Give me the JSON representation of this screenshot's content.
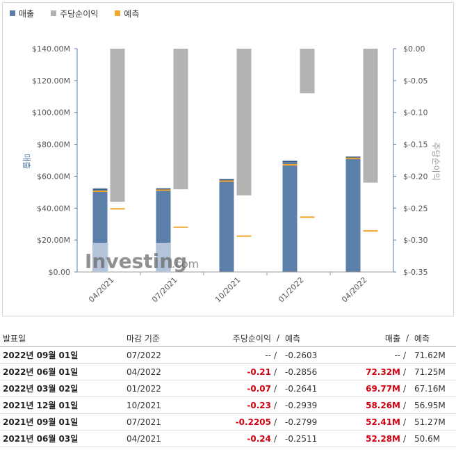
{
  "legend": [
    {
      "label": "매출",
      "color": "#5b7fa9"
    },
    {
      "label": "주당순이익",
      "color": "#b3b3b3"
    },
    {
      "label": "예측",
      "color": "#f0a830"
    }
  ],
  "chart_data": {
    "type": "bar",
    "categories": [
      "04/2021",
      "07/2021",
      "10/2021",
      "01/2022",
      "04/2022"
    ],
    "series": [
      {
        "name": "매출",
        "axis": "left",
        "values": [
          52.28,
          52.41,
          58.26,
          69.77,
          72.32
        ]
      },
      {
        "name": "매출 예측",
        "axis": "left",
        "values": [
          50.6,
          51.27,
          56.95,
          67.16,
          71.25
        ]
      },
      {
        "name": "주당순이익",
        "axis": "right",
        "values": [
          -0.24,
          -0.2205,
          -0.23,
          -0.07,
          -0.21
        ]
      },
      {
        "name": "주당순이익 예측",
        "axis": "right",
        "values": [
          -0.2511,
          -0.2799,
          -0.2939,
          -0.2641,
          -0.2856
        ]
      }
    ],
    "ylabel_left": "매출",
    "ylabel_right": "주당순이익",
    "ylim_left": [
      0,
      140
    ],
    "ylim_right": [
      -0.35,
      0
    ],
    "yticks_left": [
      "$0.00",
      "$20.00M",
      "$40.00M",
      "$60.00M",
      "$80.00M",
      "$100.00M",
      "$120.00M",
      "$140.00M"
    ],
    "yticks_right": [
      "$0.00",
      "$-0.05",
      "$-0.10",
      "$-0.15",
      "$-0.20",
      "$-0.25",
      "$-0.30",
      "$-0.35"
    ],
    "colors": {
      "revenue": "#5b7fa9",
      "eps": "#b3b3b3",
      "forecast": "#f0a830"
    },
    "watermark": "Investing.com"
  },
  "table": {
    "headers": {
      "date": "발표일",
      "period": "마감 기준",
      "eps": "주당순이익",
      "eps_sep": "/",
      "eps_fc": "예측",
      "rev": "매출",
      "rev_sep": "/",
      "rev_fc": "예측"
    },
    "rows": [
      {
        "date": "2022년 09월 01일",
        "period": "07/2022",
        "eps": "--",
        "eps_sep": "/",
        "eps_fc": "-0.2603",
        "rev": "--",
        "rev_sep": "/",
        "rev_fc": "71.62M"
      },
      {
        "date": "2022년 06월 01일",
        "period": "04/2022",
        "eps": "-0.21",
        "eps_sep": "/",
        "eps_fc": "-0.2856",
        "rev": "72.32M",
        "rev_sep": "/",
        "rev_fc": "71.25M"
      },
      {
        "date": "2022년 03월 02일",
        "period": "01/2022",
        "eps": "-0.07",
        "eps_sep": "/",
        "eps_fc": "-0.2641",
        "rev": "69.77M",
        "rev_sep": "/",
        "rev_fc": "67.16M"
      },
      {
        "date": "2021년 12월 01일",
        "period": "10/2021",
        "eps": "-0.23",
        "eps_sep": "/",
        "eps_fc": "-0.2939",
        "rev": "58.26M",
        "rev_sep": "/",
        "rev_fc": "56.95M"
      },
      {
        "date": "2021년 09월 01일",
        "period": "07/2021",
        "eps": "-0.2205",
        "eps_sep": "/",
        "eps_fc": "-0.2799",
        "rev": "52.41M",
        "rev_sep": "/",
        "rev_fc": "51.27M"
      },
      {
        "date": "2021년 06월 03일",
        "period": "04/2021",
        "eps": "-0.24",
        "eps_sep": "/",
        "eps_fc": "-0.2511",
        "rev": "52.28M",
        "rev_sep": "/",
        "rev_fc": "50.6M"
      }
    ]
  }
}
